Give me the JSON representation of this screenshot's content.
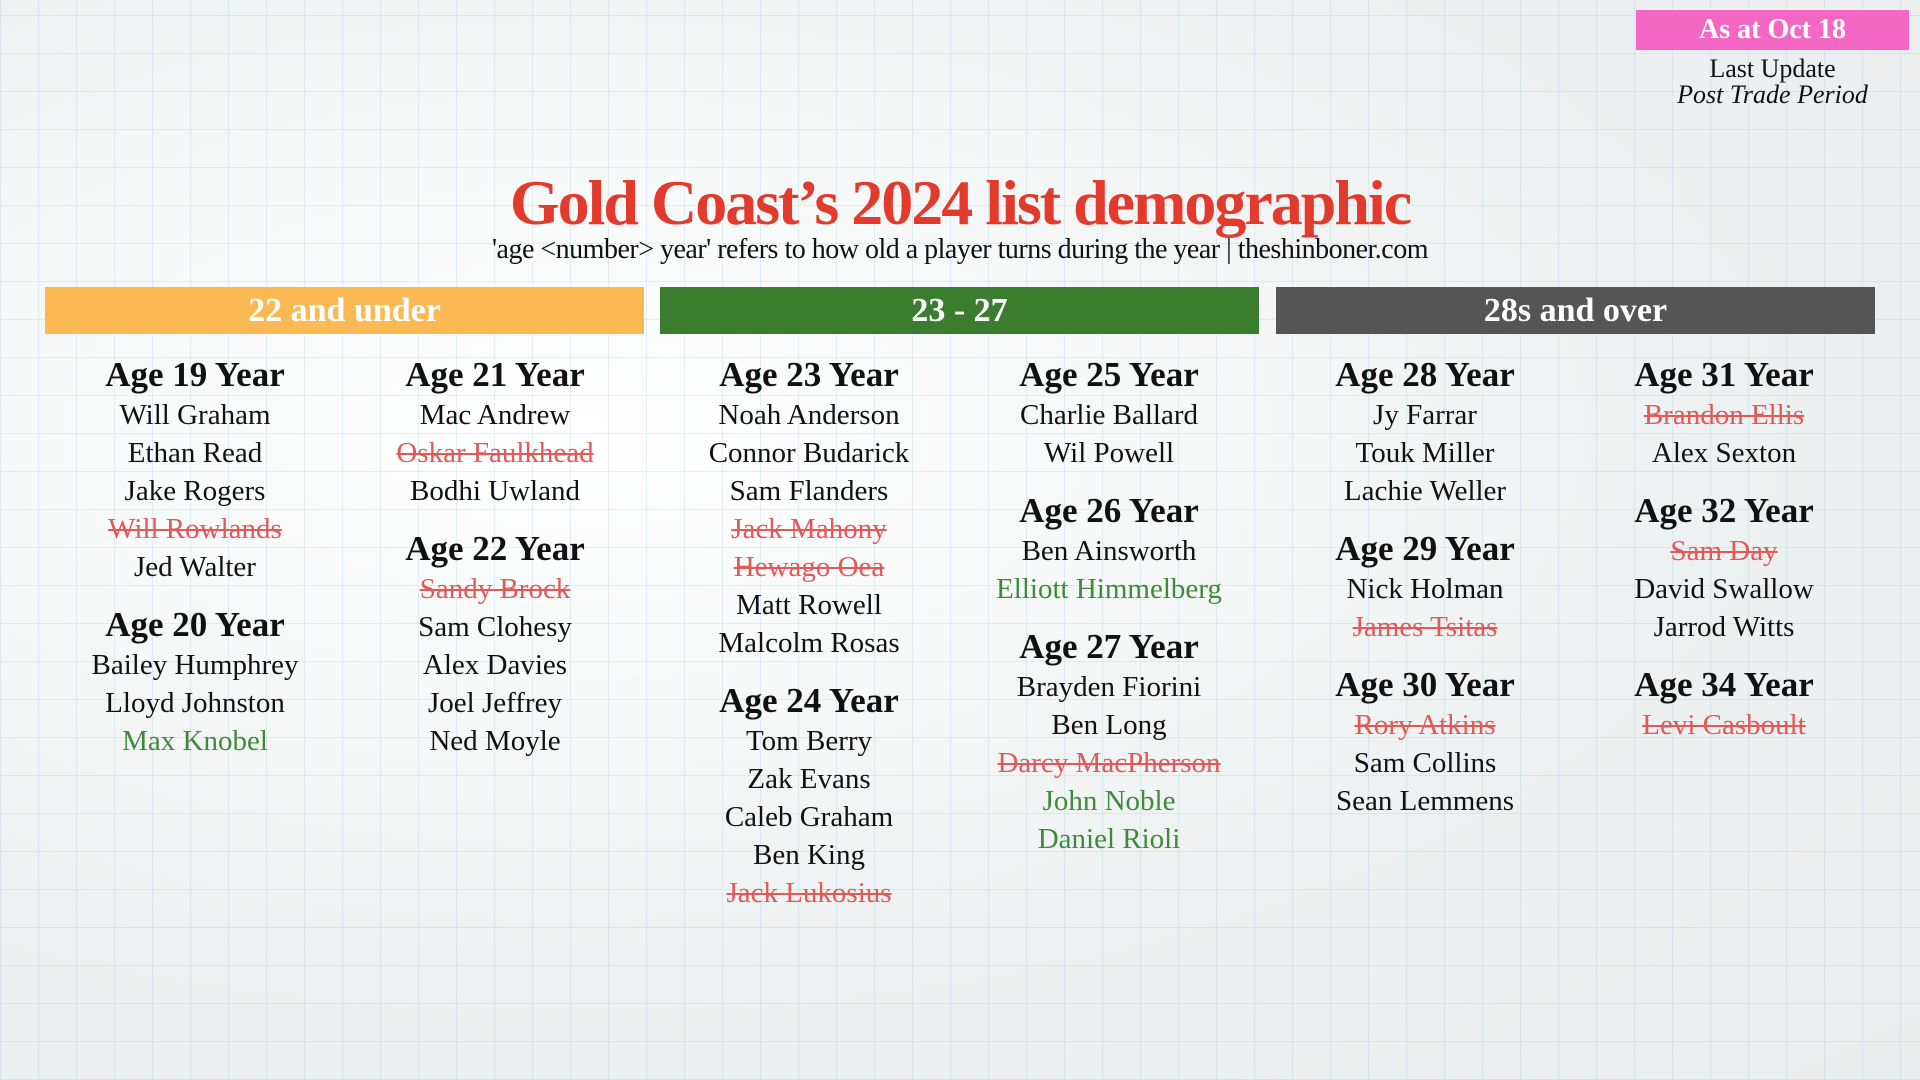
{
  "badge": "As at Oct 18",
  "last_update": "Last Update",
  "period": "Post Trade Period",
  "title": "Gold Coast’s 2024 list demographic",
  "subtitle": "'age <number> year' refers to how old a player turns during the year | theshinboner.com",
  "colors": {
    "under22": "#fbb954",
    "mid": "#3a7d2e",
    "over28": "#555555",
    "departed": "#e05a5a",
    "added": "#3f8a3a",
    "title": "#e23b2e",
    "badge": "#f567c4"
  },
  "sections": [
    {
      "label": "22 and under",
      "color": "#fbb954"
    },
    {
      "label": "23 - 27",
      "color": "#3a7d2e"
    },
    {
      "label": "28s and over",
      "color": "#555555"
    }
  ],
  "columns": [
    [
      {
        "heading": "Age 19 Year",
        "players": [
          {
            "name": "Will Graham",
            "status": "normal"
          },
          {
            "name": "Ethan Read",
            "status": "normal"
          },
          {
            "name": "Jake Rogers",
            "status": "normal"
          },
          {
            "name": "Will Rowlands",
            "status": "departed"
          },
          {
            "name": "Jed Walter",
            "status": "normal"
          }
        ]
      },
      {
        "heading": "Age 20 Year",
        "players": [
          {
            "name": "Bailey Humphrey",
            "status": "normal"
          },
          {
            "name": "Lloyd Johnston",
            "status": "normal"
          },
          {
            "name": "Max Knobel",
            "status": "added"
          }
        ]
      }
    ],
    [
      {
        "heading": "Age 21 Year",
        "players": [
          {
            "name": "Mac Andrew",
            "status": "normal"
          },
          {
            "name": "Oskar Faulkhead",
            "status": "departed"
          },
          {
            "name": "Bodhi Uwland",
            "status": "normal"
          }
        ]
      },
      {
        "heading": "Age 22 Year",
        "players": [
          {
            "name": "Sandy Brock",
            "status": "departed"
          },
          {
            "name": "Sam Clohesy",
            "status": "normal"
          },
          {
            "name": "Alex Davies",
            "status": "normal"
          },
          {
            "name": "Joel Jeffrey",
            "status": "normal"
          },
          {
            "name": "Ned Moyle",
            "status": "normal"
          }
        ]
      }
    ],
    [
      {
        "heading": "Age 23 Year",
        "players": [
          {
            "name": "Noah Anderson",
            "status": "normal"
          },
          {
            "name": "Connor Budarick",
            "status": "normal"
          },
          {
            "name": "Sam Flanders",
            "status": "normal"
          },
          {
            "name": "Jack Mahony",
            "status": "departed"
          },
          {
            "name": "Hewago Oea",
            "status": "departed"
          },
          {
            "name": "Matt Rowell",
            "status": "normal"
          },
          {
            "name": "Malcolm Rosas",
            "status": "normal"
          }
        ]
      },
      {
        "heading": "Age 24 Year",
        "players": [
          {
            "name": "Tom Berry",
            "status": "normal"
          },
          {
            "name": "Zak Evans",
            "status": "normal"
          },
          {
            "name": "Caleb Graham",
            "status": "normal"
          },
          {
            "name": "Ben King",
            "status": "normal"
          },
          {
            "name": "Jack Lukosius",
            "status": "departed"
          }
        ]
      }
    ],
    [
      {
        "heading": "Age 25 Year",
        "players": [
          {
            "name": "Charlie Ballard",
            "status": "normal"
          },
          {
            "name": "Wil Powell",
            "status": "normal"
          }
        ]
      },
      {
        "heading": "Age 26 Year",
        "players": [
          {
            "name": "Ben Ainsworth",
            "status": "normal"
          },
          {
            "name": "Elliott Himmelberg",
            "status": "added"
          }
        ]
      },
      {
        "heading": "Age 27 Year",
        "players": [
          {
            "name": "Brayden Fiorini",
            "status": "normal"
          },
          {
            "name": "Ben Long",
            "status": "normal"
          },
          {
            "name": "Darcy MacPherson",
            "status": "departed"
          },
          {
            "name": "John Noble",
            "status": "added"
          },
          {
            "name": "Daniel Rioli",
            "status": "added"
          }
        ]
      }
    ],
    [
      {
        "heading": "Age 28 Year",
        "players": [
          {
            "name": "Jy Farrar",
            "status": "normal"
          },
          {
            "name": "Touk Miller",
            "status": "normal"
          },
          {
            "name": "Lachie Weller",
            "status": "normal"
          }
        ]
      },
      {
        "heading": "Age 29 Year",
        "players": [
          {
            "name": "Nick Holman",
            "status": "normal"
          },
          {
            "name": "James Tsitas",
            "status": "departed"
          }
        ]
      },
      {
        "heading": "Age 30 Year",
        "players": [
          {
            "name": "Rory Atkins",
            "status": "departed"
          },
          {
            "name": "Sam Collins",
            "status": "normal"
          },
          {
            "name": "Sean Lemmens",
            "status": "normal"
          }
        ]
      }
    ],
    [
      {
        "heading": "Age 31 Year",
        "players": [
          {
            "name": "Brandon Ellis",
            "status": "departed"
          },
          {
            "name": "Alex Sexton",
            "status": "normal"
          }
        ]
      },
      {
        "heading": "Age 32 Year",
        "players": [
          {
            "name": "Sam Day",
            "status": "departed"
          },
          {
            "name": "David Swallow",
            "status": "normal"
          },
          {
            "name": "Jarrod Witts",
            "status": "normal"
          }
        ]
      },
      {
        "heading": "Age 34 Year",
        "players": [
          {
            "name": "Levi Casboult",
            "status": "departed"
          }
        ]
      }
    ]
  ]
}
